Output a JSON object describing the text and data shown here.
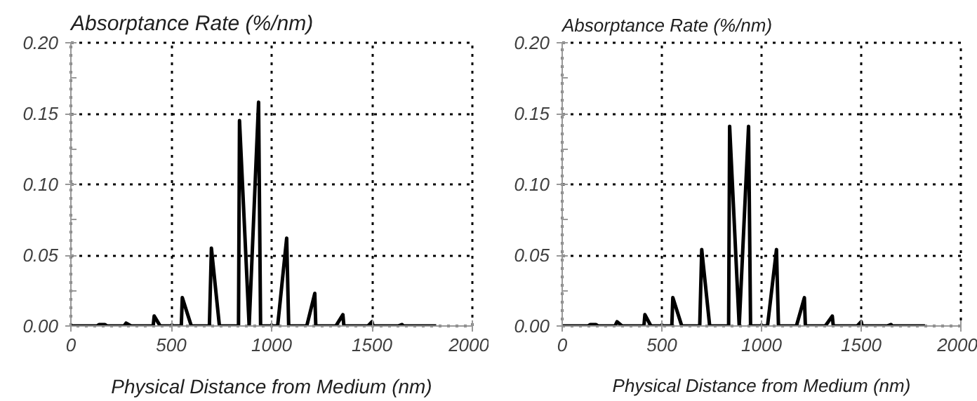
{
  "chart_data": [
    {
      "type": "line",
      "ylabel": "Absorptance Rate (%/nm)",
      "xlabel": "Physical Distance from Medium (nm)",
      "x": [
        0,
        130,
        140,
        170,
        180,
        265,
        275,
        300,
        410,
        415,
        445,
        550,
        555,
        600,
        690,
        700,
        740,
        835,
        840,
        888,
        935,
        945,
        1030,
        1075,
        1085,
        1175,
        1215,
        1220,
        1320,
        1355,
        1360,
        1480,
        1500,
        1505,
        1630,
        1650,
        1655,
        1820
      ],
      "series": [
        {
          "color": "#000000",
          "values": [
            0,
            0,
            0.001,
            0.001,
            0,
            0,
            0.002,
            0,
            0,
            0.007,
            0,
            0,
            0.02,
            0,
            0,
            0.055,
            0,
            0,
            0.145,
            0,
            0.158,
            0,
            0,
            0.062,
            0,
            0,
            0.023,
            0,
            0,
            0.008,
            0,
            0,
            0.003,
            0,
            0,
            0.001,
            0,
            0
          ]
        }
      ],
      "xlim": [
        0,
        2000
      ],
      "ylim": [
        0,
        0.2
      ],
      "xticks": [
        0,
        500,
        1000,
        1500,
        2000
      ],
      "yticks": [
        {
          "value": 0,
          "label": "0.00"
        },
        {
          "value": 0.05,
          "label": "0.05"
        },
        {
          "value": 0.1,
          "label": "0.10"
        },
        {
          "value": 0.15,
          "label": "0.15"
        },
        {
          "value": 0.2,
          "label": "0.20"
        }
      ],
      "grid": true,
      "line_style": "solid"
    },
    {
      "type": "line",
      "ylabel": "Absorptance Rate (%/nm)",
      "xlabel": "Physical Distance from Medium (nm)",
      "x": [
        0,
        130,
        140,
        170,
        180,
        265,
        275,
        300,
        410,
        415,
        445,
        550,
        555,
        600,
        690,
        700,
        740,
        835,
        840,
        888,
        935,
        945,
        1030,
        1075,
        1085,
        1175,
        1215,
        1220,
        1320,
        1355,
        1360,
        1480,
        1500,
        1505,
        1630,
        1650,
        1655,
        1820
      ],
      "series": [
        {
          "color": "#000000",
          "values": [
            0,
            0,
            0.001,
            0.001,
            0,
            0,
            0.003,
            0,
            0,
            0.008,
            0,
            0,
            0.02,
            0,
            0,
            0.054,
            0,
            0,
            0.141,
            0,
            0.141,
            0,
            0,
            0.054,
            0,
            0,
            0.02,
            0,
            0,
            0.007,
            0,
            0,
            0.003,
            0,
            0,
            0.001,
            0,
            0
          ]
        }
      ],
      "xlim": [
        0,
        2000
      ],
      "ylim": [
        0,
        0.2
      ],
      "xticks": [
        0,
        500,
        1000,
        1500,
        2000
      ],
      "yticks": [
        {
          "value": 0,
          "label": "0.00"
        },
        {
          "value": 0.05,
          "label": "0.05"
        },
        {
          "value": 0.1,
          "label": "0.10"
        },
        {
          "value": 0.15,
          "label": "0.15"
        },
        {
          "value": 0.2,
          "label": "0.20"
        }
      ],
      "grid": true,
      "line_style": "solid"
    }
  ]
}
